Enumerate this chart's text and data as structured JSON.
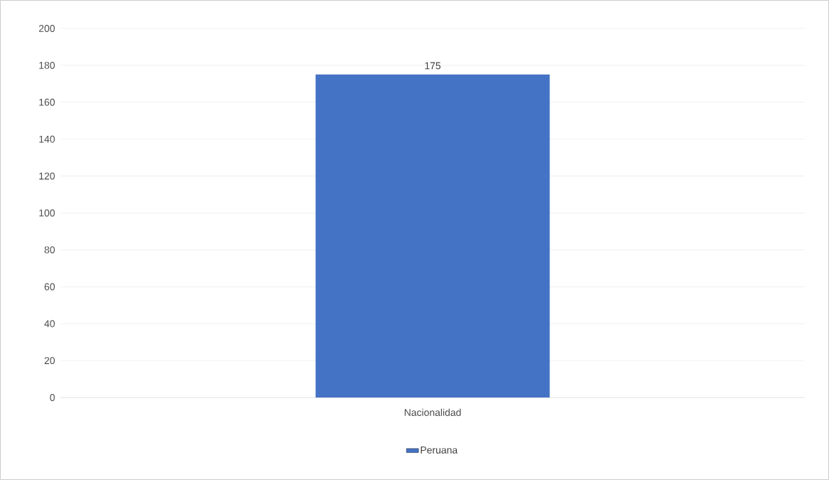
{
  "chart_data": {
    "type": "bar",
    "categories": [
      "Nacionalidad"
    ],
    "series": [
      {
        "name": "Peruana",
        "color": "#4472c4",
        "values": [
          175
        ]
      }
    ],
    "ylim": [
      0,
      200
    ],
    "yticks": [
      0,
      20,
      40,
      60,
      80,
      100,
      120,
      140,
      160,
      180,
      200
    ],
    "grid": "y",
    "legend": "bottom",
    "data_labels": true
  }
}
